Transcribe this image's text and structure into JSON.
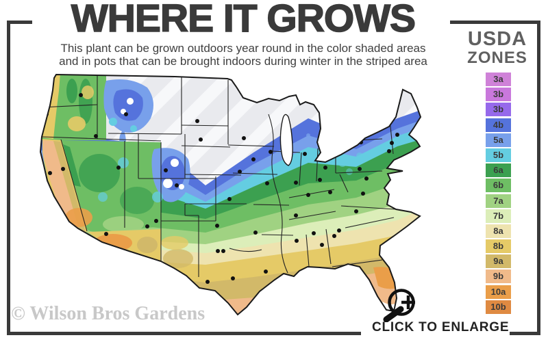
{
  "page": {
    "background": "#ffffff",
    "frame_color": "#3a3a3a"
  },
  "header": {
    "title": "WHERE IT GROWS",
    "subtitle_line1": "This plant can be grown outdoors year round in the color shaded areas",
    "subtitle_line2": "and in pots that can be brought indoors during winter in the striped area"
  },
  "legend": {
    "title_line1": "USDA",
    "title_line2": "ZONES",
    "zones": [
      {
        "label": "3a",
        "color": "#cf82d8"
      },
      {
        "label": "3b",
        "color": "#c978dc"
      },
      {
        "label": "3b",
        "color": "#9669eb"
      },
      {
        "label": "4b",
        "color": "#5573dc"
      },
      {
        "label": "5a",
        "color": "#78a0eb"
      },
      {
        "label": "5b",
        "color": "#64cde1"
      },
      {
        "label": "6a",
        "color": "#3ca050"
      },
      {
        "label": "6b",
        "color": "#6ebe64"
      },
      {
        "label": "7a",
        "color": "#a0d282"
      },
      {
        "label": "7b",
        "color": "#dceeb9"
      },
      {
        "label": "8a",
        "color": "#eee3af"
      },
      {
        "label": "8b",
        "color": "#e5ca67"
      },
      {
        "label": "9a",
        "color": "#d2b969"
      },
      {
        "label": "9b",
        "color": "#f0ba8a"
      },
      {
        "label": "10a",
        "color": "#ea9e49"
      },
      {
        "label": "10b",
        "color": "#df8a42"
      }
    ]
  },
  "map": {
    "outline_color": "#1a1a1a",
    "state_line_color": "#222222",
    "city_dot_color": "#111111",
    "lake_color": "#ffffff",
    "striped_area_base": "#e9eaee",
    "striped_area_stripe": "#f7f8fa"
  },
  "footer": {
    "watermark": "© Wilson Bros Gardens",
    "enlarge_label": "CLICK TO ENLARGE",
    "enlarge_icon": "magnifier-plus-icon"
  }
}
